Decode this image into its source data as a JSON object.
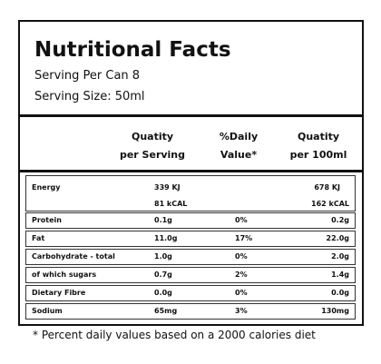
{
  "header": {
    "title": "Nutritional Facts",
    "serving_per_can": "Serving Per Can 8",
    "serving_size": "Serving Size: 50ml"
  },
  "table": {
    "columns": [
      [
        "Quatity",
        "per Serving"
      ],
      [
        "%Daily",
        "Value*"
      ],
      [
        "Quatity",
        "per 100ml"
      ]
    ],
    "energy": {
      "label": "Energy",
      "per_serving": [
        "339 KJ",
        "81 kCAL"
      ],
      "per_100ml": [
        "678 KJ",
        "162 kCAL"
      ]
    },
    "rows": [
      [
        "Protein",
        "0.1g",
        "0%",
        "0.2g"
      ],
      [
        "Fat",
        "11.0g",
        "17%",
        "22.0g"
      ],
      [
        "Carbohydrate - total",
        "1.0g",
        "0%",
        "2.0g"
      ],
      [
        "of which sugars",
        "0.7g",
        "2%",
        "1.4g"
      ],
      [
        "Dietary Fibre",
        "0.0g",
        "0%",
        "0.0g"
      ],
      [
        "Sodium",
        "65mg",
        "3%",
        "130mg"
      ]
    ]
  },
  "footnote": "* Percent daily values based on a 2000 calories diet"
}
